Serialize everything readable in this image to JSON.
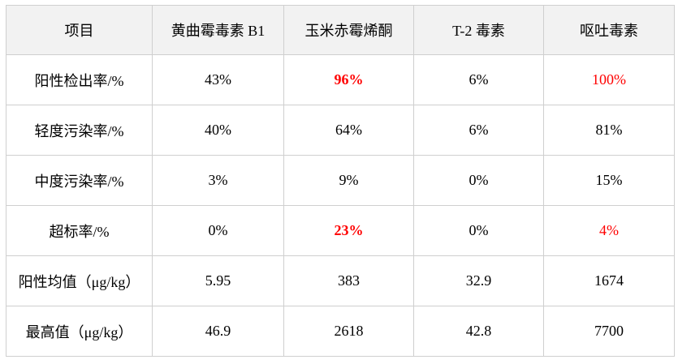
{
  "table": {
    "headers": [
      "项目",
      "黄曲霉毒素 B1",
      "玉米赤霉烯酮",
      "T-2 毒素",
      "呕吐毒素"
    ],
    "rows": [
      {
        "label": "阳性检出率/%",
        "values": [
          "43%",
          "96%",
          "6%",
          "100%"
        ]
      },
      {
        "label": "轻度污染率/%",
        "values": [
          "40%",
          "64%",
          "6%",
          "81%"
        ]
      },
      {
        "label": "中度污染率/%",
        "values": [
          "3%",
          "9%",
          "0%",
          "15%"
        ]
      },
      {
        "label": "超标率/%",
        "values": [
          "0%",
          "23%",
          "0%",
          "4%"
        ]
      },
      {
        "label": "阳性均值（μg/kg）",
        "values": [
          "5.95",
          "383",
          "32.9",
          "1674"
        ]
      },
      {
        "label": "最高值（μg/kg）",
        "values": [
          "46.9",
          "2618",
          "42.8",
          "7700"
        ]
      }
    ]
  },
  "colors": {
    "header_bg": "#f2f2f2",
    "highlight": "#ff0000",
    "border": "#cfcfcf"
  }
}
